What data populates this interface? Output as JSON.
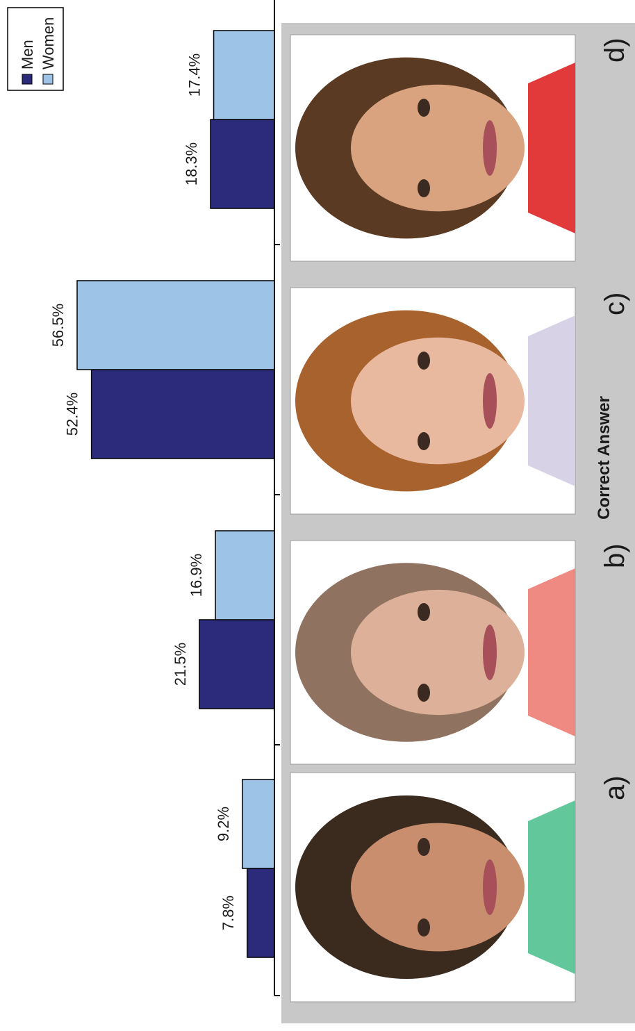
{
  "chart_data": {
    "type": "bar",
    "categories": [
      "a)",
      "b)",
      "c)",
      "d)"
    ],
    "series": [
      {
        "name": "Men",
        "values": [
          7.8,
          21.5,
          52.4,
          18.3
        ],
        "labels": [
          "7.8%",
          "21.5%",
          "52.4%",
          "18.3%"
        ],
        "color": "#2b2a7b"
      },
      {
        "name": "Women",
        "values": [
          9.2,
          16.9,
          56.5,
          17.4
        ],
        "labels": [
          "9.2%",
          "16.9%",
          "56.5%",
          "17.4%"
        ],
        "color": "#9dc3e6"
      }
    ],
    "ylim": [
      0,
      60
    ],
    "orientation": "rotated-90",
    "legend_position": "top-left",
    "grid": false,
    "annotations": [
      {
        "category": "c)",
        "text": "Correct Answer"
      }
    ]
  },
  "colors": {
    "panel_background": "#c8c8c8",
    "photo_background": "#ffffff",
    "bar_outline": "#000000"
  },
  "photos": [
    {
      "icon": "face-photo-dark-brown-hair-woman"
    },
    {
      "icon": "face-photo-light-brown-hair-woman"
    },
    {
      "icon": "face-photo-auburn-hair-smiling-woman"
    },
    {
      "icon": "face-photo-young-brunette-woman"
    }
  ]
}
